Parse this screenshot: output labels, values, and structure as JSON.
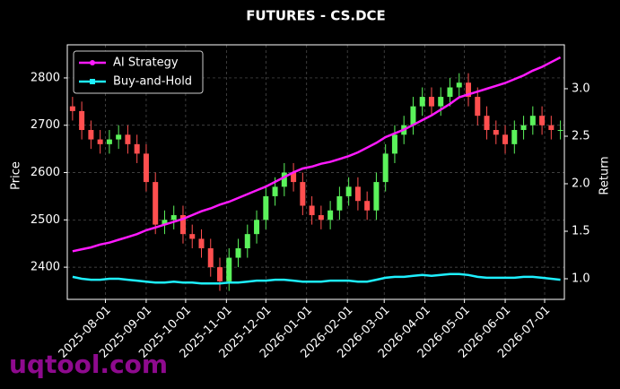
{
  "chart_data": {
    "type": "candlestick",
    "title": "FUTURES - CS.DCE",
    "ylabel": "Price",
    "y2label": "Return",
    "x": [
      "2025-07-07",
      "2025-07-14",
      "2025-07-21",
      "2025-07-28",
      "2025-08-04",
      "2025-08-11",
      "2025-08-18",
      "2025-08-25",
      "2025-09-01",
      "2025-09-08",
      "2025-09-15",
      "2025-09-22",
      "2025-09-29",
      "2025-10-06",
      "2025-10-13",
      "2025-10-20",
      "2025-10-27",
      "2025-11-03",
      "2025-11-10",
      "2025-11-17",
      "2025-11-24",
      "2025-12-01",
      "2025-12-08",
      "2025-12-15",
      "2025-12-22",
      "2025-12-29",
      "2026-01-05",
      "2026-01-12",
      "2026-01-19",
      "2026-01-26",
      "2026-02-02",
      "2026-02-09",
      "2026-02-16",
      "2026-02-23",
      "2026-03-02",
      "2026-03-09",
      "2026-03-16",
      "2026-03-23",
      "2026-03-30",
      "2026-04-06",
      "2026-04-13",
      "2026-04-20",
      "2026-04-27",
      "2026-05-04",
      "2026-05-11",
      "2026-05-18",
      "2026-05-25",
      "2026-06-01",
      "2026-06-08",
      "2026-06-15",
      "2026-06-22",
      "2026-06-29",
      "2026-07-06",
      "2026-07-13"
    ],
    "open": [
      2740,
      2730,
      2690,
      2670,
      2660,
      2670,
      2680,
      2660,
      2640,
      2580,
      2490,
      2500,
      2510,
      2470,
      2460,
      2440,
      2400,
      2370,
      2420,
      2440,
      2470,
      2500,
      2550,
      2570,
      2600,
      2580,
      2530,
      2510,
      2500,
      2520,
      2550,
      2570,
      2540,
      2520,
      2580,
      2640,
      2680,
      2700,
      2740,
      2760,
      2740,
      2760,
      2780,
      2790,
      2760,
      2720,
      2690,
      2680,
      2660,
      2690,
      2700,
      2720,
      2700,
      2690
    ],
    "high": [
      2760,
      2750,
      2710,
      2690,
      2690,
      2700,
      2700,
      2680,
      2660,
      2600,
      2520,
      2530,
      2530,
      2490,
      2480,
      2460,
      2420,
      2440,
      2460,
      2490,
      2520,
      2570,
      2590,
      2620,
      2620,
      2600,
      2550,
      2530,
      2540,
      2570,
      2590,
      2590,
      2560,
      2600,
      2660,
      2700,
      2720,
      2760,
      2780,
      2780,
      2780,
      2800,
      2810,
      2810,
      2780,
      2740,
      2710,
      2700,
      2710,
      2720,
      2740,
      2740,
      2720,
      2710
    ],
    "low": [
      2710,
      2670,
      2650,
      2640,
      2640,
      2650,
      2640,
      2620,
      2560,
      2470,
      2470,
      2480,
      2450,
      2440,
      2420,
      2380,
      2350,
      2350,
      2400,
      2420,
      2450,
      2480,
      2530,
      2550,
      2560,
      2510,
      2490,
      2480,
      2480,
      2500,
      2530,
      2520,
      2500,
      2500,
      2560,
      2620,
      2660,
      2680,
      2720,
      2720,
      2720,
      2740,
      2760,
      2740,
      2700,
      2670,
      2660,
      2640,
      2640,
      2670,
      2680,
      2680,
      2670,
      2670
    ],
    "close": [
      2730,
      2690,
      2670,
      2660,
      2670,
      2680,
      2660,
      2640,
      2580,
      2490,
      2500,
      2510,
      2470,
      2460,
      2440,
      2400,
      2370,
      2420,
      2440,
      2470,
      2500,
      2550,
      2570,
      2600,
      2580,
      2530,
      2510,
      2500,
      2520,
      2550,
      2570,
      2540,
      2520,
      2580,
      2640,
      2680,
      2700,
      2740,
      2760,
      2740,
      2760,
      2780,
      2790,
      2760,
      2720,
      2690,
      2680,
      2660,
      2690,
      2700,
      2720,
      2700,
      2690,
      2690
    ],
    "up_color": "#5bf25b",
    "down_color": "#ff4f4f",
    "series": [
      {
        "name": "AI Strategy",
        "color": "#ff1aff",
        "axis": "y2",
        "values": [
          1.29,
          1.31,
          1.33,
          1.36,
          1.38,
          1.41,
          1.44,
          1.47,
          1.51,
          1.54,
          1.57,
          1.6,
          1.63,
          1.67,
          1.71,
          1.74,
          1.78,
          1.81,
          1.85,
          1.89,
          1.93,
          1.97,
          2.02,
          2.07,
          2.12,
          2.16,
          2.18,
          2.21,
          2.23,
          2.26,
          2.29,
          2.33,
          2.38,
          2.43,
          2.49,
          2.53,
          2.57,
          2.62,
          2.67,
          2.72,
          2.78,
          2.84,
          2.91,
          2.94,
          2.97,
          3.0,
          3.03,
          3.06,
          3.1,
          3.14,
          3.19,
          3.23,
          3.28,
          3.33
        ]
      },
      {
        "name": "Buy-and-Hold",
        "color": "#1ef0ff",
        "axis": "y2",
        "values": [
          1.02,
          1.0,
          0.99,
          0.99,
          1.0,
          1.0,
          0.99,
          0.98,
          0.97,
          0.96,
          0.96,
          0.97,
          0.96,
          0.96,
          0.95,
          0.95,
          0.95,
          0.96,
          0.96,
          0.97,
          0.98,
          0.98,
          0.99,
          0.99,
          0.98,
          0.97,
          0.97,
          0.97,
          0.98,
          0.98,
          0.98,
          0.97,
          0.97,
          0.99,
          1.01,
          1.02,
          1.02,
          1.03,
          1.04,
          1.03,
          1.04,
          1.05,
          1.05,
          1.04,
          1.02,
          1.01,
          1.01,
          1.01,
          1.01,
          1.02,
          1.02,
          1.01,
          1.0,
          0.99
        ]
      }
    ],
    "xlim": [
      "2025-07-03",
      "2026-07-16"
    ],
    "xticks": [
      "2025-08-01",
      "2025-09-01",
      "2025-10-01",
      "2025-11-01",
      "2025-12-01",
      "2026-01-01",
      "2026-02-01",
      "2026-03-01",
      "2026-04-01",
      "2026-05-01",
      "2026-06-01",
      "2026-07-01"
    ],
    "ylim": [
      2332,
      2870
    ],
    "yticks": [
      2400,
      2500,
      2600,
      2700,
      2800
    ],
    "y2lim": [
      0.783,
      3.462
    ],
    "y2ticks": [
      {
        "value": 1,
        "label": "1.0"
      },
      1.5,
      {
        "value": 2,
        "label": "2.0"
      },
      2.5,
      {
        "value": 3,
        "label": "3.0"
      }
    ],
    "grid": true,
    "legend": "upper left"
  },
  "watermark": "uqtool.com"
}
